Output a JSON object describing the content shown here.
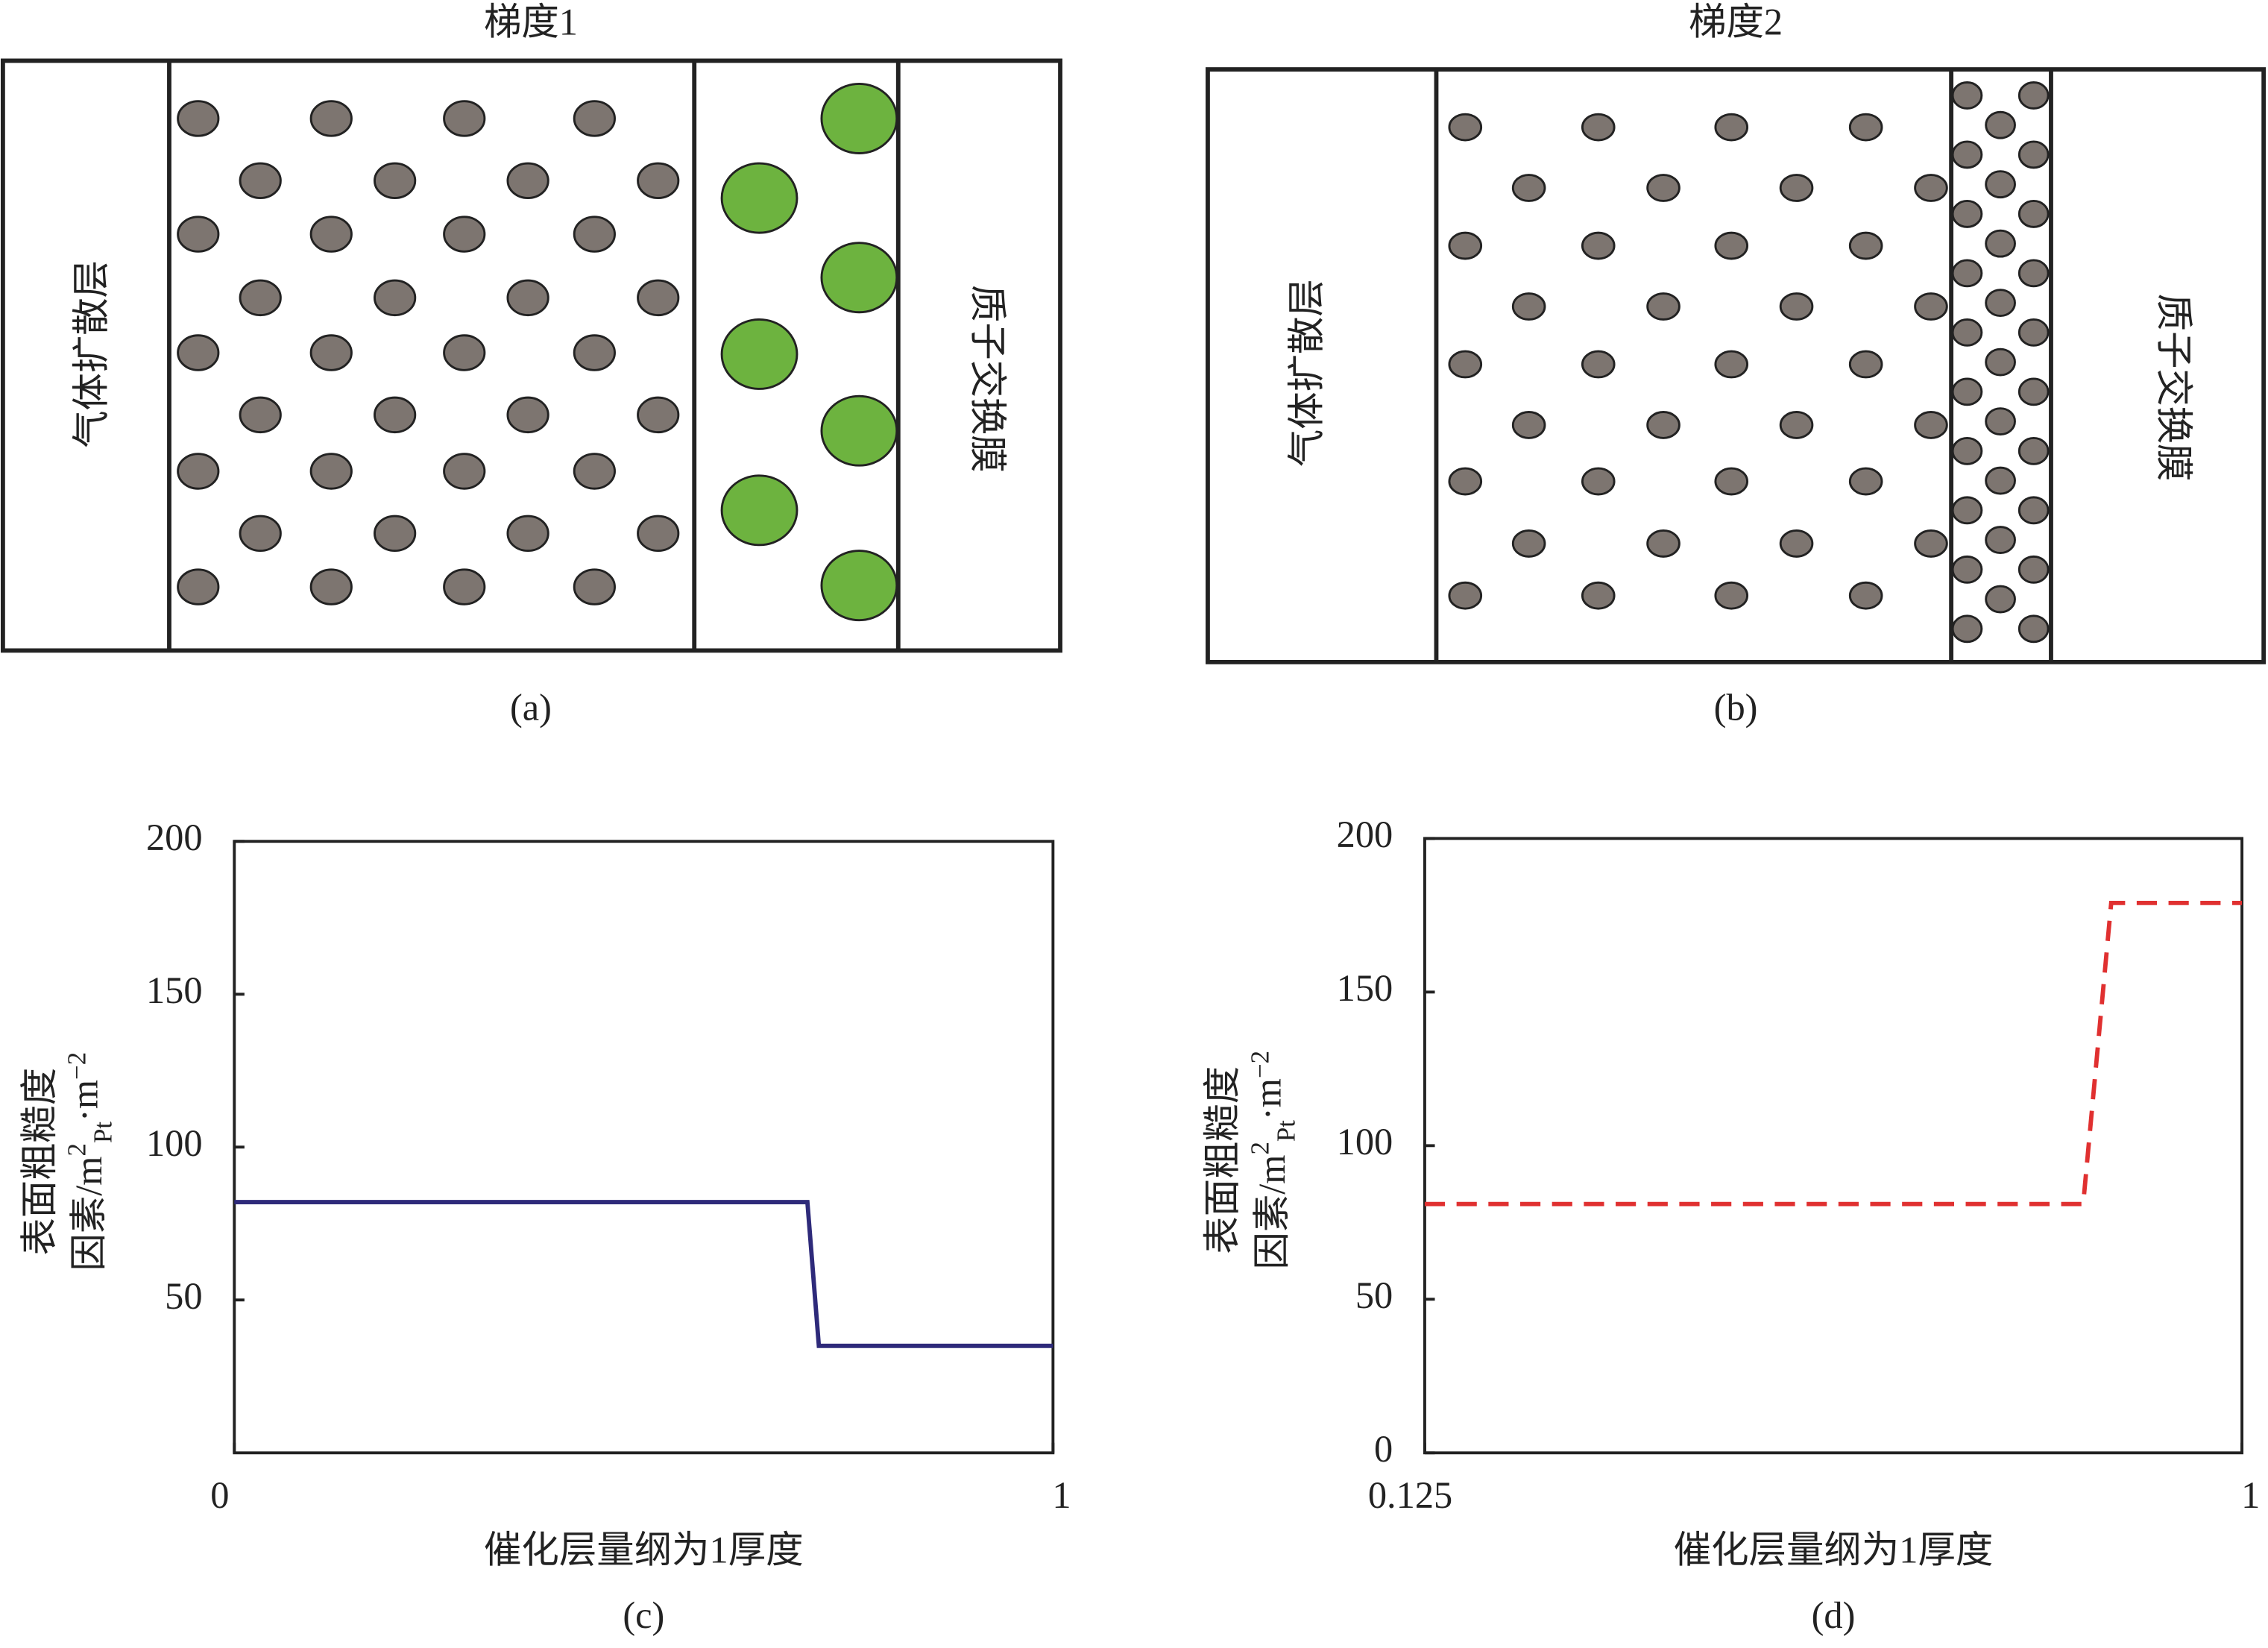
{
  "diagrams": [
    {
      "title": "梯度1",
      "left_label": "气体扩散层",
      "right_label": "质子交换膜",
      "caption": "(a)"
    },
    {
      "title": "梯度2",
      "left_label": "气体扩散层",
      "right_label": "质子交换膜",
      "caption": "(b)"
    }
  ],
  "chart_data": [
    {
      "type": "line",
      "caption": "(c)",
      "xlabel": "催化层量纲为1厚度",
      "ylabel": [
        "表面粗糙度",
        [
          "因素/m",
          "2",
          "Pt",
          "·m",
          "−2"
        ]
      ],
      "x": [
        0,
        0.7,
        0.714,
        1
      ],
      "xlim": [
        0,
        1
      ],
      "xticks": [
        0,
        1
      ],
      "ylim": [
        0,
        200
      ],
      "yticks": [
        50,
        100,
        150,
        200
      ],
      "series": [
        {
          "color": "#2e2a7a",
          "style": "solid",
          "values": [
            82,
            82,
            35,
            35
          ]
        }
      ]
    },
    {
      "type": "line",
      "caption": "(d)",
      "xlabel": "催化层量纲为1厚度",
      "ylabel": [
        "表面粗糙度",
        [
          "因素/m",
          "2",
          "Pt",
          "·m",
          "−2"
        ]
      ],
      "x": [
        0.125,
        0.83,
        0.86,
        1
      ],
      "xlim": [
        0.125,
        1
      ],
      "xticks": [
        0.125,
        1
      ],
      "ylim": [
        0,
        200
      ],
      "yticks": [
        0,
        50,
        100,
        150,
        200
      ],
      "series": [
        {
          "color": "#e03030",
          "style": "dashed",
          "values": [
            81,
            81,
            179,
            179
          ]
        }
      ]
    }
  ]
}
